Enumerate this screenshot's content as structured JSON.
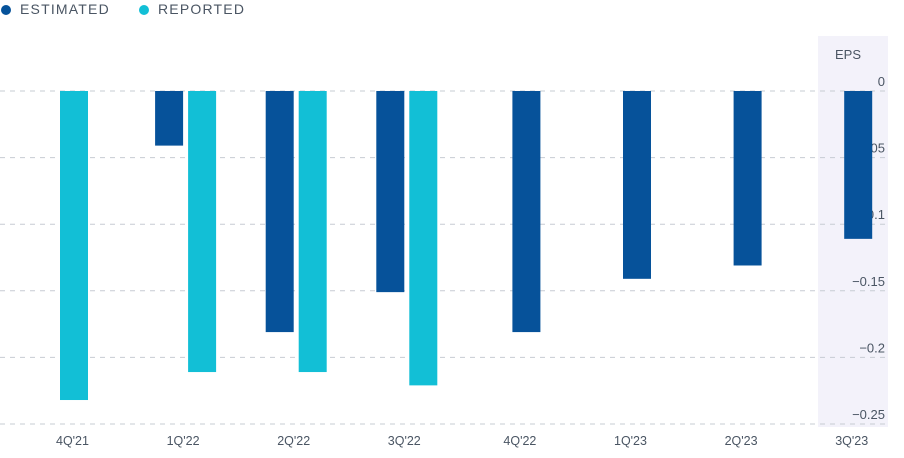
{
  "legend": {
    "estimated": "ESTIMATED",
    "reported": "REPORTED"
  },
  "colors": {
    "estimated": "#06529a",
    "reported": "#12bfd6",
    "axis_panel": "#f3f2fa"
  },
  "chart_data": {
    "type": "bar",
    "ylabel": "EPS",
    "ylim": [
      -0.25,
      0
    ],
    "yticks": [
      {
        "value": 0,
        "label": "0"
      },
      {
        "value": -0.05,
        "label": "−0.05"
      },
      {
        "value": -0.1,
        "label": "−0.1"
      },
      {
        "value": -0.15,
        "label": "−0.15"
      },
      {
        "value": -0.2,
        "label": "−0.2"
      },
      {
        "value": -0.25,
        "label": "−0.25"
      }
    ],
    "categories": [
      "4Q'21",
      "1Q'22",
      "2Q'22",
      "3Q'22",
      "4Q'22",
      "1Q'23",
      "2Q'23",
      "3Q'23"
    ],
    "grid": true,
    "legend_position": "top-left",
    "series": [
      {
        "name": "ESTIMATED",
        "values": [
          null,
          -0.041,
          -0.181,
          -0.151,
          -0.181,
          -0.141,
          -0.131,
          -0.111
        ]
      },
      {
        "name": "REPORTED",
        "values": [
          -0.232,
          -0.211,
          -0.211,
          -0.221,
          null,
          null,
          null,
          null
        ]
      }
    ]
  }
}
